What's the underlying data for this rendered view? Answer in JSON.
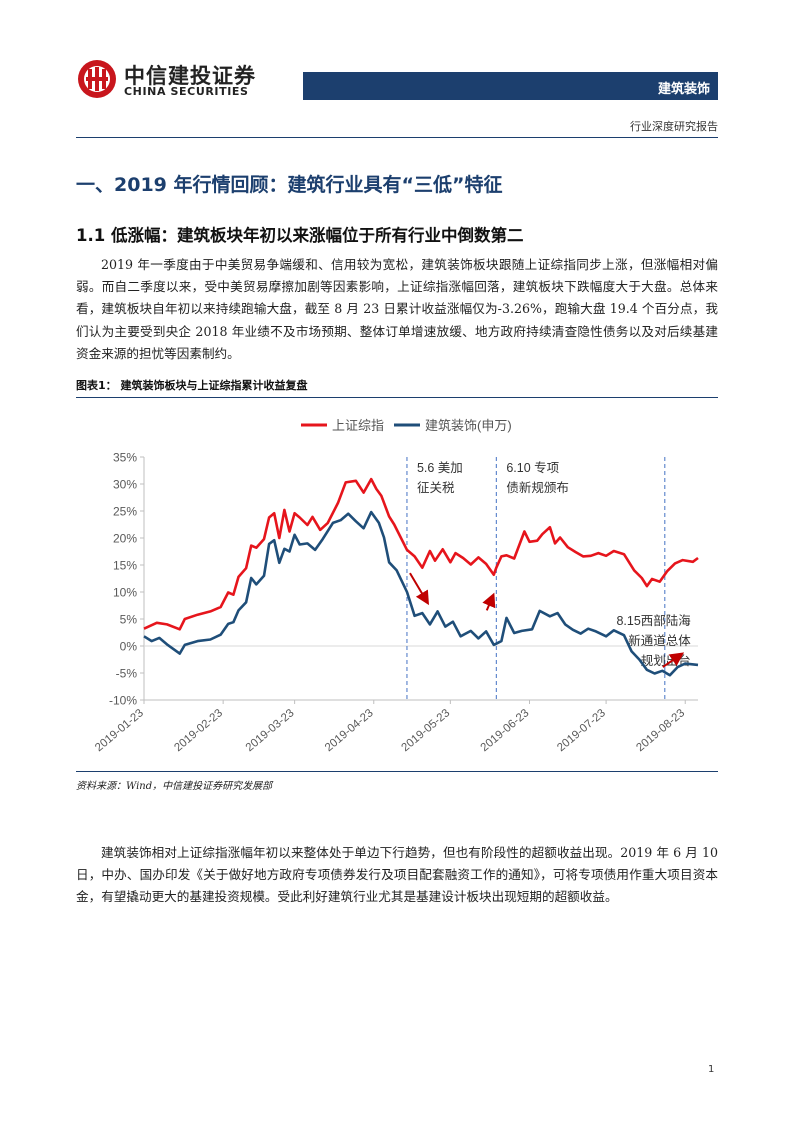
{
  "brand": {
    "name_cn": "中信建投证券",
    "name_en": "CHINA SECURITIES",
    "brand_color": "#c8161d",
    "navy": "#1c3f6e"
  },
  "header": {
    "sector": "建筑装饰",
    "report_type": "行业深度研究报告"
  },
  "section_title": "一、2019 年行情回顾：建筑行业具有“三低”特征",
  "subsection_title": "1.1 低涨幅：建筑板块年初以来涨幅位于所有行业中倒数第二",
  "paragraph1": "2019 年一季度由于中美贸易争端缓和、信用较为宽松，建筑装饰板块跟随上证综指同步上涨，但涨幅相对偏弱。而自二季度以来，受中美贸易摩擦加剧等因素影响，上证综指涨幅回落，建筑板块下跌幅度大于大盘。总体来看，建筑板块自年初以来持续跑输大盘，截至 8 月 23 日累计收益涨幅仅为-3.26%，跑输大盘 19.4 个百分点，我们认为主要受到央企 2018 年业绩不及市场预期、整体订单增速放缓、地方政府持续清查隐性债务以及对后续基建资金来源的担忧等因素制约。",
  "figure_label": "图表1：  建筑装饰板块与上证综指累计收益复盘",
  "source": "资料来源：Wind，中信建投证券研究发展部",
  "paragraph2": "建筑装饰相对上证综指涨幅年初以来整体处于单边下行趋势，但也有阶段性的超额收益出现。2019 年 6 月 10 日，中办、国办印发《关于做好地方政府专项债券发行及项目配套融资工作的通知》，可将专项债用作重大项目资本金，有望撬动更大的基建投资规模。受此利好建筑行业尤其是基建设计板块出现短期的超额收益。",
  "page_number": "1",
  "chart_data": {
    "type": "line",
    "legend_position": "top",
    "grid": false,
    "ylim": [
      -10,
      35
    ],
    "y_ticks": [
      "35%",
      "30%",
      "25%",
      "20%",
      "15%",
      "10%",
      "5%",
      "0%",
      "-5%",
      "-10%"
    ],
    "y_tick_values": [
      35,
      30,
      25,
      20,
      15,
      10,
      5,
      0,
      -5,
      -10
    ],
    "x_ticks": [
      "2019-01-23",
      "2019-02-23",
      "2019-03-23",
      "2019-04-23",
      "2019-05-23",
      "2019-06-23",
      "2019-07-23",
      "2019-08-23"
    ],
    "x_tick_dates": [
      "2019-01-23",
      "2019-02-23",
      "2019-03-23",
      "2019-04-23",
      "2019-05-23",
      "2019-06-23",
      "2019-07-23",
      "2019-08-23"
    ],
    "x_range": [
      "2019-01-23",
      "2019-08-28"
    ],
    "series": [
      {
        "name": "上证综指",
        "color": "#e6151c",
        "points": [
          [
            "2019-01-23",
            3.2
          ],
          [
            "2019-01-28",
            4.3
          ],
          [
            "2019-02-01",
            4.0
          ],
          [
            "2019-02-06",
            3.1
          ],
          [
            "2019-02-08",
            5.0
          ],
          [
            "2019-02-13",
            5.8
          ],
          [
            "2019-02-18",
            6.4
          ],
          [
            "2019-02-22",
            7.2
          ],
          [
            "2019-02-25",
            9.9
          ],
          [
            "2019-02-27",
            9.5
          ],
          [
            "2019-03-01",
            12.8
          ],
          [
            "2019-03-04",
            14.4
          ],
          [
            "2019-03-06",
            18.6
          ],
          [
            "2019-03-08",
            18.2
          ],
          [
            "2019-03-11",
            19.8
          ],
          [
            "2019-03-13",
            23.8
          ],
          [
            "2019-03-15",
            24.6
          ],
          [
            "2019-03-17",
            20.0
          ],
          [
            "2019-03-19",
            25.2
          ],
          [
            "2019-03-21",
            21.2
          ],
          [
            "2019-03-23",
            24.6
          ],
          [
            "2019-03-25",
            23.8
          ],
          [
            "2019-03-28",
            22.4
          ],
          [
            "2019-03-30",
            23.9
          ],
          [
            "2019-04-02",
            21.5
          ],
          [
            "2019-04-05",
            22.8
          ],
          [
            "2019-04-09",
            26.5
          ],
          [
            "2019-04-12",
            30.3
          ],
          [
            "2019-04-16",
            30.6
          ],
          [
            "2019-04-19",
            28.4
          ],
          [
            "2019-04-22",
            30.9
          ],
          [
            "2019-04-24",
            29.1
          ],
          [
            "2019-04-26",
            27.8
          ],
          [
            "2019-04-29",
            24.0
          ],
          [
            "2019-05-01",
            22.5
          ],
          [
            "2019-05-06",
            17.8
          ],
          [
            "2019-05-09",
            16.6
          ],
          [
            "2019-05-12",
            14.5
          ],
          [
            "2019-05-15",
            17.6
          ],
          [
            "2019-05-17",
            15.8
          ],
          [
            "2019-05-20",
            17.9
          ],
          [
            "2019-05-23",
            15.5
          ],
          [
            "2019-05-25",
            17.2
          ],
          [
            "2019-05-28",
            16.3
          ],
          [
            "2019-05-31",
            15.1
          ],
          [
            "2019-06-03",
            16.4
          ],
          [
            "2019-06-06",
            15.2
          ],
          [
            "2019-06-09",
            13.2
          ],
          [
            "2019-06-10",
            14.5
          ],
          [
            "2019-06-12",
            16.6
          ],
          [
            "2019-06-14",
            16.8
          ],
          [
            "2019-06-17",
            16.2
          ],
          [
            "2019-06-21",
            21.2
          ],
          [
            "2019-06-23",
            19.3
          ],
          [
            "2019-06-26",
            19.5
          ],
          [
            "2019-06-28",
            20.7
          ],
          [
            "2019-07-01",
            22.0
          ],
          [
            "2019-07-03",
            19.0
          ],
          [
            "2019-07-05",
            20.1
          ],
          [
            "2019-07-08",
            18.3
          ],
          [
            "2019-07-11",
            17.4
          ],
          [
            "2019-07-14",
            16.6
          ],
          [
            "2019-07-17",
            16.7
          ],
          [
            "2019-07-20",
            17.2
          ],
          [
            "2019-07-23",
            16.7
          ],
          [
            "2019-07-26",
            17.6
          ],
          [
            "2019-07-30",
            17.0
          ],
          [
            "2019-08-03",
            14.0
          ],
          [
            "2019-08-06",
            12.6
          ],
          [
            "2019-08-08",
            11.1
          ],
          [
            "2019-08-10",
            12.4
          ],
          [
            "2019-08-13",
            11.9
          ],
          [
            "2019-08-16",
            13.9
          ],
          [
            "2019-08-19",
            15.3
          ],
          [
            "2019-08-22",
            15.9
          ],
          [
            "2019-08-26",
            15.6
          ],
          [
            "2019-08-28",
            16.3
          ]
        ]
      },
      {
        "name": "建筑装饰(申万)",
        "color": "#1f4e79",
        "points": [
          [
            "2019-01-23",
            1.8
          ],
          [
            "2019-01-26",
            0.9
          ],
          [
            "2019-01-29",
            1.5
          ],
          [
            "2019-02-01",
            0.3
          ],
          [
            "2019-02-06",
            -1.4
          ],
          [
            "2019-02-08",
            0.2
          ],
          [
            "2019-02-13",
            0.9
          ],
          [
            "2019-02-18",
            1.2
          ],
          [
            "2019-02-22",
            2.1
          ],
          [
            "2019-02-25",
            4.1
          ],
          [
            "2019-02-27",
            4.4
          ],
          [
            "2019-03-01",
            6.6
          ],
          [
            "2019-03-04",
            8.1
          ],
          [
            "2019-03-06",
            12.6
          ],
          [
            "2019-03-08",
            11.4
          ],
          [
            "2019-03-11",
            13.0
          ],
          [
            "2019-03-13",
            18.9
          ],
          [
            "2019-03-15",
            19.6
          ],
          [
            "2019-03-17",
            15.4
          ],
          [
            "2019-03-19",
            18.0
          ],
          [
            "2019-03-21",
            17.5
          ],
          [
            "2019-03-23",
            20.6
          ],
          [
            "2019-03-25",
            18.8
          ],
          [
            "2019-03-28",
            19.0
          ],
          [
            "2019-03-31",
            17.8
          ],
          [
            "2019-04-03",
            19.8
          ],
          [
            "2019-04-07",
            22.8
          ],
          [
            "2019-04-10",
            23.3
          ],
          [
            "2019-04-13",
            24.5
          ],
          [
            "2019-04-16",
            23.1
          ],
          [
            "2019-04-19",
            21.8
          ],
          [
            "2019-04-22",
            24.8
          ],
          [
            "2019-04-25",
            22.8
          ],
          [
            "2019-04-27",
            20.1
          ],
          [
            "2019-04-29",
            15.5
          ],
          [
            "2019-05-02",
            14.0
          ],
          [
            "2019-05-06",
            10.0
          ],
          [
            "2019-05-09",
            5.6
          ],
          [
            "2019-05-12",
            6.1
          ],
          [
            "2019-05-15",
            4.0
          ],
          [
            "2019-05-18",
            6.4
          ],
          [
            "2019-05-21",
            3.6
          ],
          [
            "2019-05-24",
            4.5
          ],
          [
            "2019-05-27",
            1.8
          ],
          [
            "2019-05-31",
            2.8
          ],
          [
            "2019-06-03",
            1.4
          ],
          [
            "2019-06-06",
            2.7
          ],
          [
            "2019-06-09",
            0.2
          ],
          [
            "2019-06-12",
            0.9
          ],
          [
            "2019-06-14",
            5.2
          ],
          [
            "2019-06-17",
            2.4
          ],
          [
            "2019-06-20",
            2.8
          ],
          [
            "2019-06-24",
            3.1
          ],
          [
            "2019-06-27",
            6.5
          ],
          [
            "2019-07-01",
            5.5
          ],
          [
            "2019-07-04",
            6.1
          ],
          [
            "2019-07-07",
            4.0
          ],
          [
            "2019-07-10",
            3.0
          ],
          [
            "2019-07-13",
            2.3
          ],
          [
            "2019-07-16",
            3.2
          ],
          [
            "2019-07-19",
            2.7
          ],
          [
            "2019-07-23",
            1.8
          ],
          [
            "2019-07-26",
            2.9
          ],
          [
            "2019-07-30",
            2.0
          ],
          [
            "2019-08-02",
            -1.0
          ],
          [
            "2019-08-05",
            -2.5
          ],
          [
            "2019-08-08",
            -4.4
          ],
          [
            "2019-08-11",
            -5.1
          ],
          [
            "2019-08-14",
            -4.6
          ],
          [
            "2019-08-17",
            -5.4
          ],
          [
            "2019-08-20",
            -3.9
          ],
          [
            "2019-08-23",
            -3.26
          ],
          [
            "2019-08-28",
            -3.5
          ]
        ]
      }
    ],
    "events": [
      {
        "date": "2019-05-06",
        "label_lines": [
          "5.6 美加",
          "征关税"
        ],
        "dashed_color": "#4472c4"
      },
      {
        "date": "2019-06-10",
        "label_lines": [
          "6.10 专项",
          "债新规颁布"
        ],
        "dashed_color": "#4472c4"
      },
      {
        "date": "2019-08-15",
        "label_lines": [
          "8.15西部陆海",
          "新通道总体",
          "规划出台"
        ],
        "dashed_color": "#4472c4"
      }
    ],
    "arrows": [
      {
        "direction": "down",
        "color": "#c00000"
      },
      {
        "direction": "up",
        "color": "#c00000"
      },
      {
        "direction": "up",
        "color": "#c00000"
      }
    ]
  }
}
